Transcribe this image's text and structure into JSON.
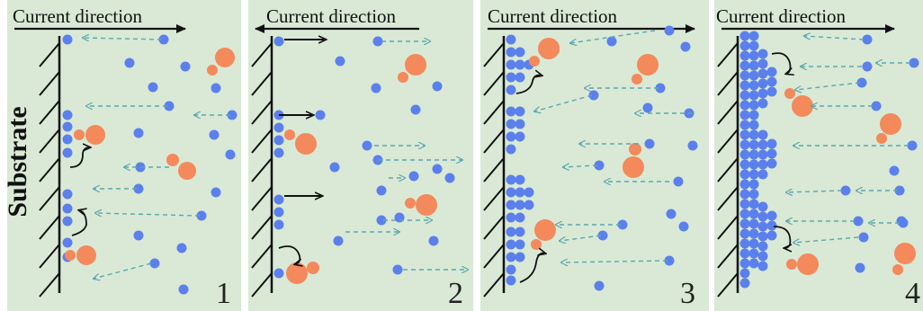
{
  "substrate_label": "Substrate",
  "current_label": "Current direction",
  "panels": [
    {
      "number": "1",
      "arrow_dir": "right"
    },
    {
      "number": "2",
      "arrow_dir": "left"
    },
    {
      "number": "3",
      "arrow_dir": "right"
    },
    {
      "number": "4",
      "arrow_dir": "right"
    }
  ],
  "colors": {
    "background": "#d9e9d5",
    "ion": "#5b80ee",
    "bubble": "#f4895b",
    "dashed_arrow": "#5ca8ae",
    "line": "#111111"
  }
}
